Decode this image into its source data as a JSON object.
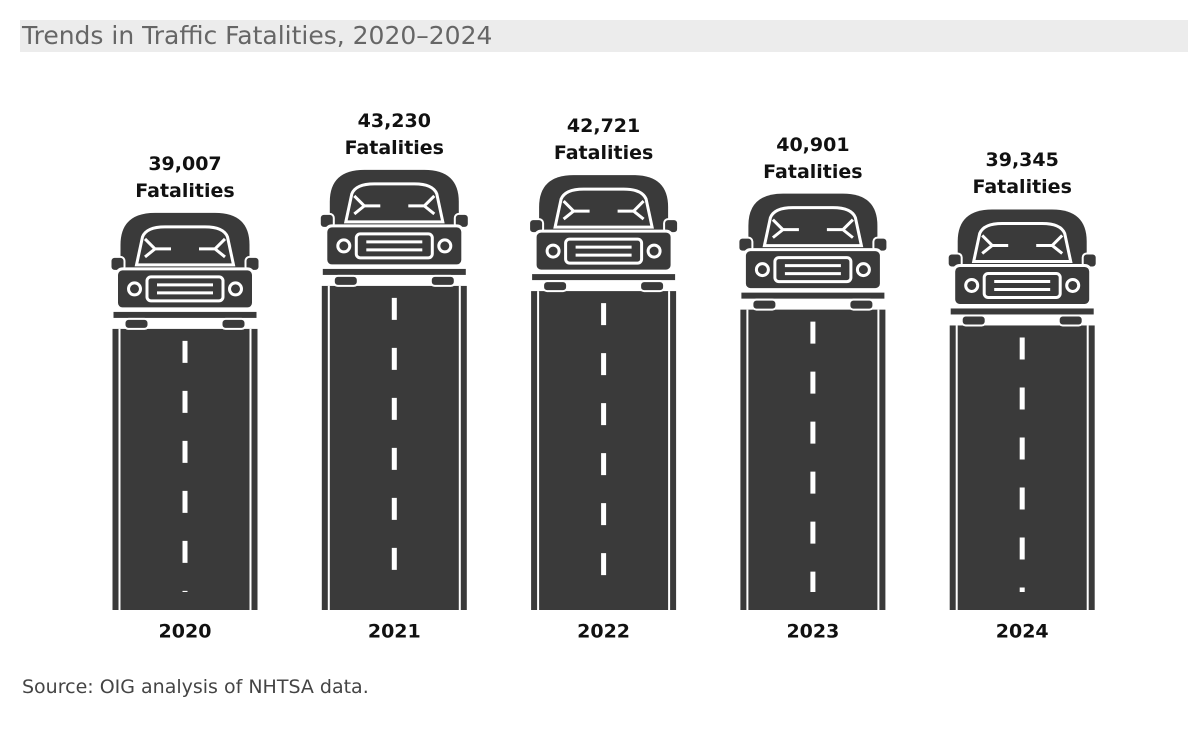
{
  "chart_data": {
    "type": "bar",
    "title": "Trends in Traffic Fatalities, 2020–2024",
    "categories": [
      "2020",
      "2021",
      "2022",
      "2023",
      "2024"
    ],
    "values": [
      39007,
      43230,
      42721,
      40901,
      39345
    ],
    "value_labels": [
      "39,007 Fatalities",
      "43,230 Fatalities",
      "42,721 Fatalities",
      "40,901 Fatalities",
      "39,345 Fatalities"
    ],
    "color": "#3a3a3a",
    "source": "Source: OIG analysis of NHTSA data."
  }
}
